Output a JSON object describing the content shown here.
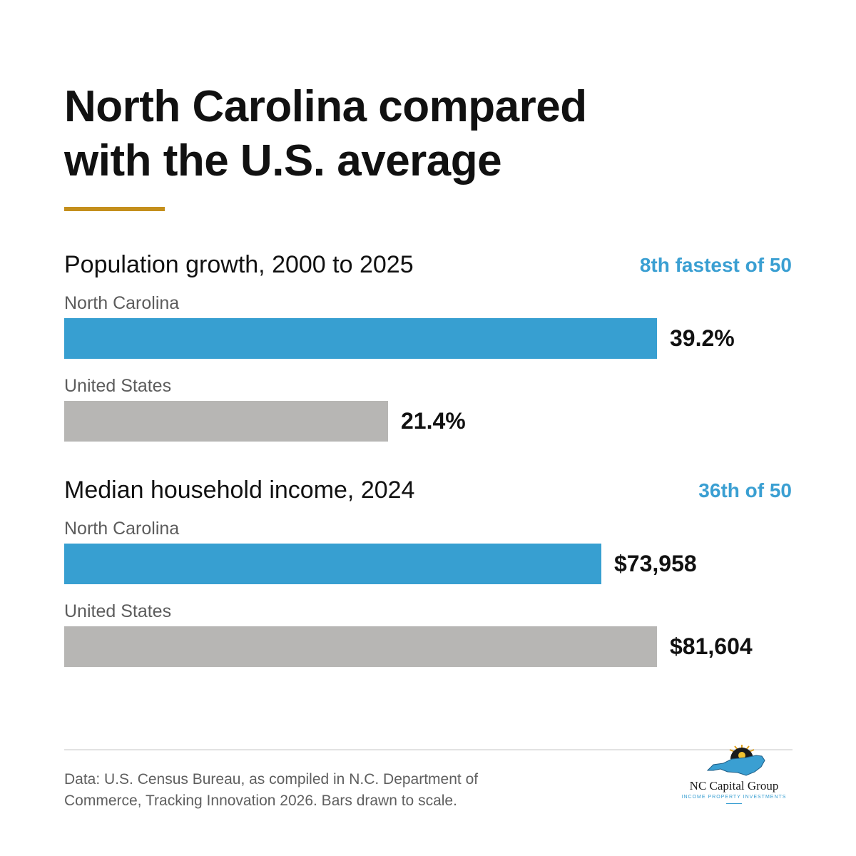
{
  "colors": {
    "nc_bar": "#379fd1",
    "us_bar": "#b7b6b4",
    "accent": "#c48f1c",
    "rank_text": "#3a9fd2"
  },
  "title_lines": [
    "North Carolina compared",
    "with the U.S. average"
  ],
  "source": "Data: U.S. Census Bureau, as compiled in N.C. Department of Commerce, Tracking Innovation 2026. Bars drawn to scale.",
  "logo": {
    "name": "NC Capital Group",
    "tagline": "INCOME PROPERTY INVESTMENTS",
    "icon": "nc-state-sunburst-icon"
  },
  "chart_data": [
    {
      "type": "bar",
      "orientation": "horizontal",
      "title": "Population growth, 2000 to 2025",
      "rank_note": "8th fastest of 50",
      "categories": [
        "North Carolina",
        "United States"
      ],
      "values": [
        39.2,
        21.4
      ],
      "value_labels": [
        "39.2%",
        "21.4%"
      ],
      "unit": "%",
      "xlim": [
        0,
        39.2
      ]
    },
    {
      "type": "bar",
      "orientation": "horizontal",
      "title": "Median household income, 2024",
      "rank_note": "36th of 50",
      "categories": [
        "North Carolina",
        "United States"
      ],
      "values": [
        73958,
        81604
      ],
      "value_labels": [
        "$73,958",
        "$81,604"
      ],
      "unit": "$",
      "xlim": [
        0,
        81604
      ]
    }
  ]
}
